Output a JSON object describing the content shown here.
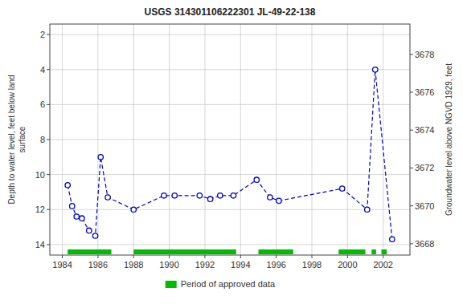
{
  "chart_data": {
    "type": "line",
    "title": "USGS 314301106222301 JL-49-22-138",
    "ylabel": "Depth to water level, feet below land\nsurface",
    "y2label": "Groundwater level above NGVD 1929, feet",
    "xlim": [
      1983.3,
      2003.5
    ],
    "xticks": [
      1984,
      1986,
      1988,
      1990,
      1992,
      1994,
      1996,
      1998,
      2000,
      2002
    ],
    "ylim": [
      14.6,
      1.4
    ],
    "yticks": [
      2,
      4,
      6,
      8,
      10,
      12,
      14
    ],
    "y2lim": [
      3667.4,
      3679.6
    ],
    "y2ticks": [
      3668,
      3670,
      3672,
      3674,
      3676,
      3678
    ],
    "grid": true,
    "legend": "bottom",
    "x": [
      1984.3,
      1984.55,
      1984.8,
      1985.1,
      1985.5,
      1985.85,
      1986.15,
      1986.55,
      1988.0,
      1989.7,
      1990.3,
      1991.7,
      1992.3,
      1992.85,
      1993.6,
      1994.9,
      1995.65,
      1996.15,
      1999.7,
      2001.1,
      2001.55,
      2002.5
    ],
    "series": [
      {
        "type": "line",
        "color": "#0000cc",
        "marker": "circle",
        "line_style": "dashed",
        "values": [
          10.6,
          11.8,
          12.4,
          12.5,
          13.2,
          13.5,
          9.0,
          11.3,
          12.0,
          11.2,
          11.2,
          11.2,
          11.4,
          11.2,
          11.2,
          10.3,
          11.3,
          11.5,
          10.8,
          12.0,
          4.0,
          13.7
        ]
      },
      {
        "type": "span",
        "name": "Period of approved data",
        "color": "#00bb00",
        "ranges": [
          [
            1984.3,
            1986.75
          ],
          [
            1988.0,
            1993.75
          ],
          [
            1995.0,
            1996.95
          ],
          [
            1999.5,
            2001.0
          ],
          [
            2001.35,
            2001.6
          ],
          [
            2001.9,
            2002.2
          ]
        ]
      }
    ]
  }
}
